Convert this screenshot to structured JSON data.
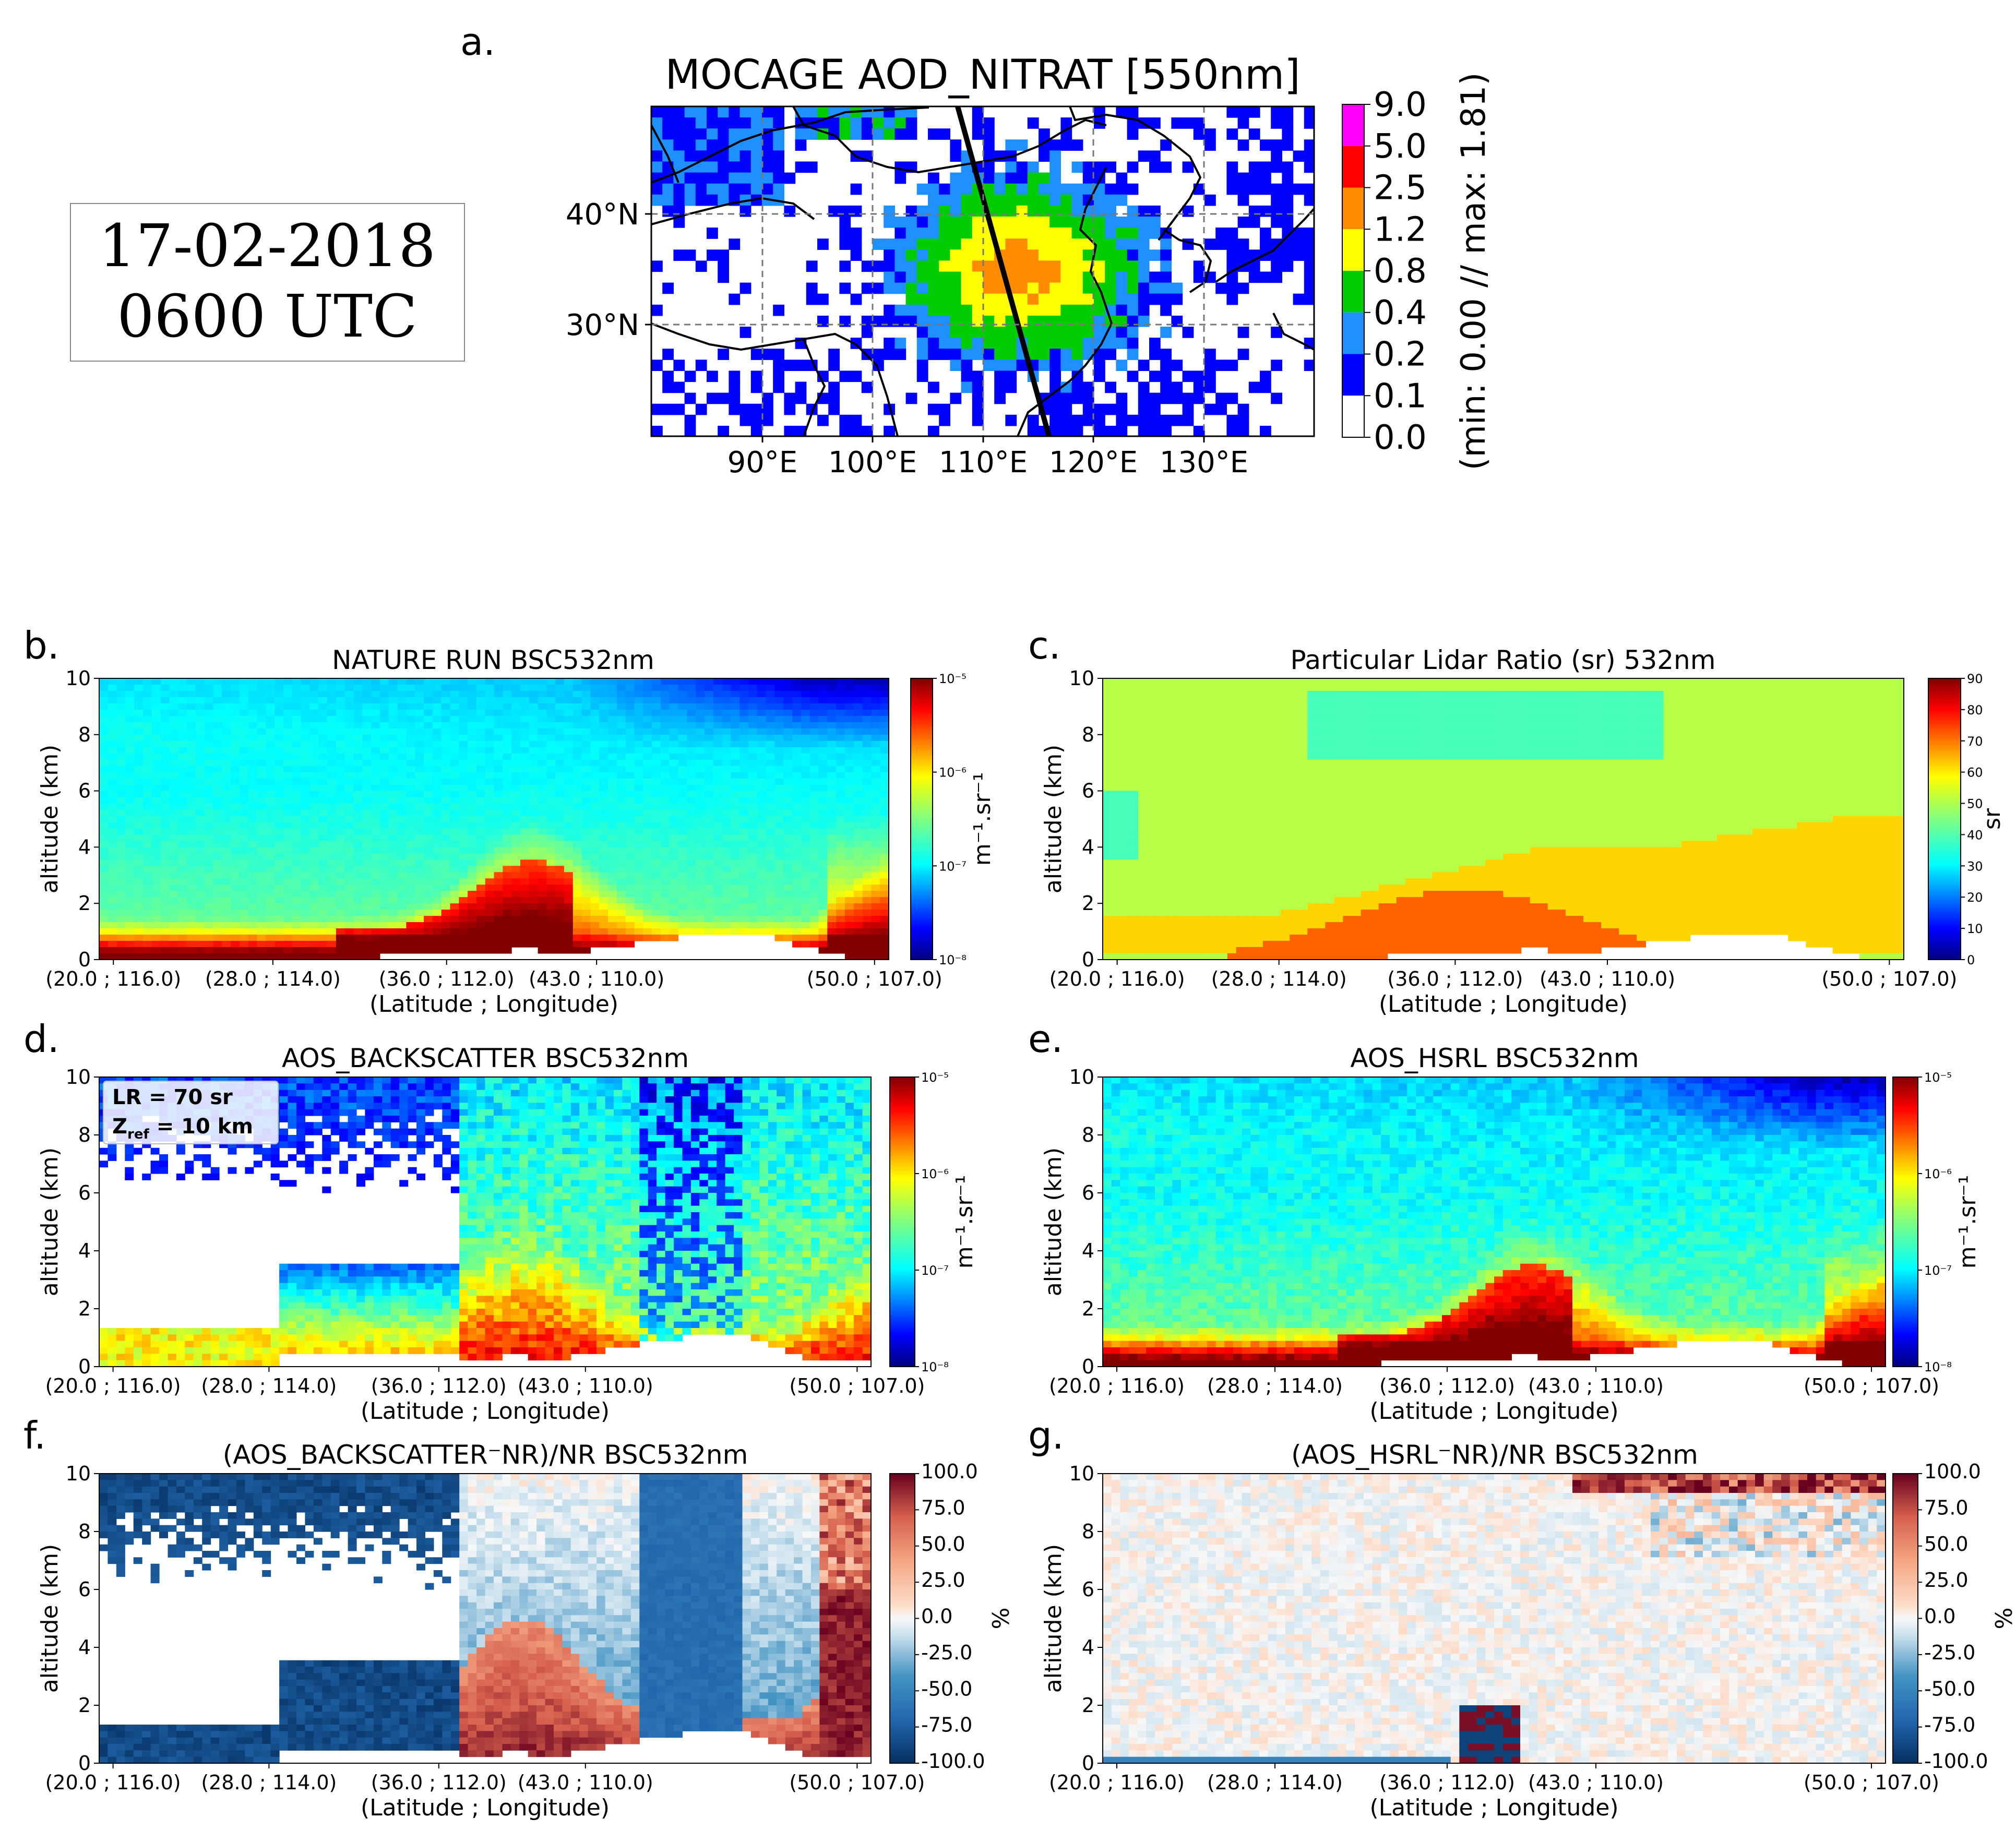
{
  "figure": {
    "date_line1": "17-02-2018",
    "date_line2": "0600 UTC"
  },
  "chart_data": [
    {
      "id": "a",
      "panel_label": "a.",
      "type": "heatmap",
      "title": "MOCAGE AOD_NITRAT [550nm]",
      "x_ticks": [
        "90°E",
        "100°E",
        "110°E",
        "120°E",
        "130°E"
      ],
      "y_ticks": [
        "40°N",
        "30°N"
      ],
      "colorbar": {
        "levels": [
          "9.0",
          "5.0",
          "2.5",
          "1.2",
          "0.8",
          "0.4",
          "0.2",
          "0.1",
          "0.0"
        ],
        "colors": [
          "#ff00ff",
          "#ff0000",
          "#ff8c00",
          "#ffff00",
          "#00cc00",
          "#1e90ff",
          "#0000ff",
          "#ffffff"
        ],
        "label": "(min:  0.00 // max:  1.81)"
      },
      "min": 0.0,
      "max": 1.81
    },
    {
      "id": "b",
      "panel_label": "b.",
      "type": "heatmap",
      "title": "NATURE RUN BSC532nm",
      "xlabel": "(Latitude ; Longitude)",
      "ylabel": "altitude (km)",
      "x_ticks": [
        "(20.0 ; 116.0)",
        "(28.0 ; 114.0)",
        "(36.0 ; 112.0)",
        "(43.0 ; 110.0)",
        "(50.0 ; 107.0)"
      ],
      "y_ticks": [
        "0",
        "2",
        "4",
        "6",
        "8",
        "10"
      ],
      "ylim": [
        0,
        10
      ],
      "colorbar": {
        "ticks": [
          "10⁻⁵",
          "10⁻⁶",
          "10⁻⁷",
          "10⁻⁸"
        ],
        "label": "m⁻¹.sr⁻¹",
        "scale": "log",
        "range": [
          1e-08,
          1e-05
        ]
      }
    },
    {
      "id": "c",
      "panel_label": "c.",
      "type": "heatmap",
      "title": "Particular Lidar Ratio (sr) 532nm",
      "xlabel": "(Latitude ; Longitude)",
      "ylabel": "altitude (km)",
      "x_ticks": [
        "(20.0 ; 116.0)",
        "(28.0 ; 114.0)",
        "(36.0 ; 112.0)",
        "(43.0 ; 110.0)",
        "(50.0 ; 107.0)"
      ],
      "y_ticks": [
        "0",
        "2",
        "4",
        "6",
        "8",
        "10"
      ],
      "ylim": [
        0,
        10
      ],
      "colorbar": {
        "ticks": [
          "90",
          "80",
          "70",
          "60",
          "50",
          "40",
          "30",
          "20",
          "10",
          "0"
        ],
        "label": "sr",
        "range": [
          0,
          90
        ]
      }
    },
    {
      "id": "d",
      "panel_label": "d.",
      "type": "heatmap",
      "title": "AOS_BACKSCATTER BSC532nm",
      "annotation_line1": "LR = 70 sr",
      "annotation_line2_prefix": "Z",
      "annotation_line2_sub": "ref",
      "annotation_line2_suffix": " = 10 km",
      "xlabel": "(Latitude ; Longitude)",
      "ylabel": "altitude (km)",
      "x_ticks": [
        "(20.0 ; 116.0)",
        "(28.0 ; 114.0)",
        "(36.0 ; 112.0)",
        "(43.0 ; 110.0)",
        "(50.0 ; 107.0)"
      ],
      "y_ticks": [
        "0",
        "2",
        "4",
        "6",
        "8",
        "10"
      ],
      "ylim": [
        0,
        10
      ],
      "colorbar": {
        "ticks": [
          "10⁻⁵",
          "10⁻⁶",
          "10⁻⁷",
          "10⁻⁸"
        ],
        "label": "m⁻¹.sr⁻¹",
        "scale": "log",
        "range": [
          1e-08,
          1e-05
        ]
      }
    },
    {
      "id": "e",
      "panel_label": "e.",
      "type": "heatmap",
      "title": "AOS_HSRL BSC532nm",
      "xlabel": "(Latitude ; Longitude)",
      "ylabel": "altitude (km)",
      "x_ticks": [
        "(20.0 ; 116.0)",
        "(28.0 ; 114.0)",
        "(36.0 ; 112.0)",
        "(43.0 ; 110.0)",
        "(50.0 ; 107.0)"
      ],
      "y_ticks": [
        "0",
        "2",
        "4",
        "6",
        "8",
        "10"
      ],
      "ylim": [
        0,
        10
      ],
      "colorbar": {
        "ticks": [
          "10⁻⁵",
          "10⁻⁶",
          "10⁻⁷",
          "10⁻⁸"
        ],
        "label": "m⁻¹.sr⁻¹",
        "scale": "log",
        "range": [
          1e-08,
          1e-05
        ]
      }
    },
    {
      "id": "f",
      "panel_label": "f.",
      "type": "heatmap",
      "title": "(AOS_BACKSCATTER⁻NR)/NR BSC532nm",
      "xlabel": "(Latitude ; Longitude)",
      "ylabel": "altitude (km)",
      "x_ticks": [
        "(20.0 ; 116.0)",
        "(28.0 ; 114.0)",
        "(36.0 ; 112.0)",
        "(43.0 ; 110.0)",
        "(50.0 ; 107.0)"
      ],
      "y_ticks": [
        "0",
        "2",
        "4",
        "6",
        "8",
        "10"
      ],
      "ylim": [
        0,
        10
      ],
      "colorbar": {
        "ticks": [
          "100.0",
          "75.0",
          "50.0",
          "25.0",
          "0.0",
          "-25.0",
          "-50.0",
          "-75.0",
          "-100.0"
        ],
        "label": "%",
        "range": [
          -100,
          100
        ]
      }
    },
    {
      "id": "g",
      "panel_label": "g.",
      "type": "heatmap",
      "title": "(AOS_HSRL⁻NR)/NR BSC532nm",
      "xlabel": "(Latitude ; Longitude)",
      "ylabel": "altitude (km)",
      "x_ticks": [
        "(20.0 ; 116.0)",
        "(28.0 ; 114.0)",
        "(36.0 ; 112.0)",
        "(43.0 ; 110.0)",
        "(50.0 ; 107.0)"
      ],
      "y_ticks": [
        "0",
        "2",
        "4",
        "6",
        "8",
        "10"
      ],
      "ylim": [
        0,
        10
      ],
      "colorbar": {
        "ticks": [
          "100.0",
          "75.0",
          "50.0",
          "25.0",
          "0.0",
          "-25.0",
          "-50.0",
          "-75.0",
          "-100.0"
        ],
        "label": "%",
        "range": [
          -100,
          100
        ]
      }
    }
  ]
}
